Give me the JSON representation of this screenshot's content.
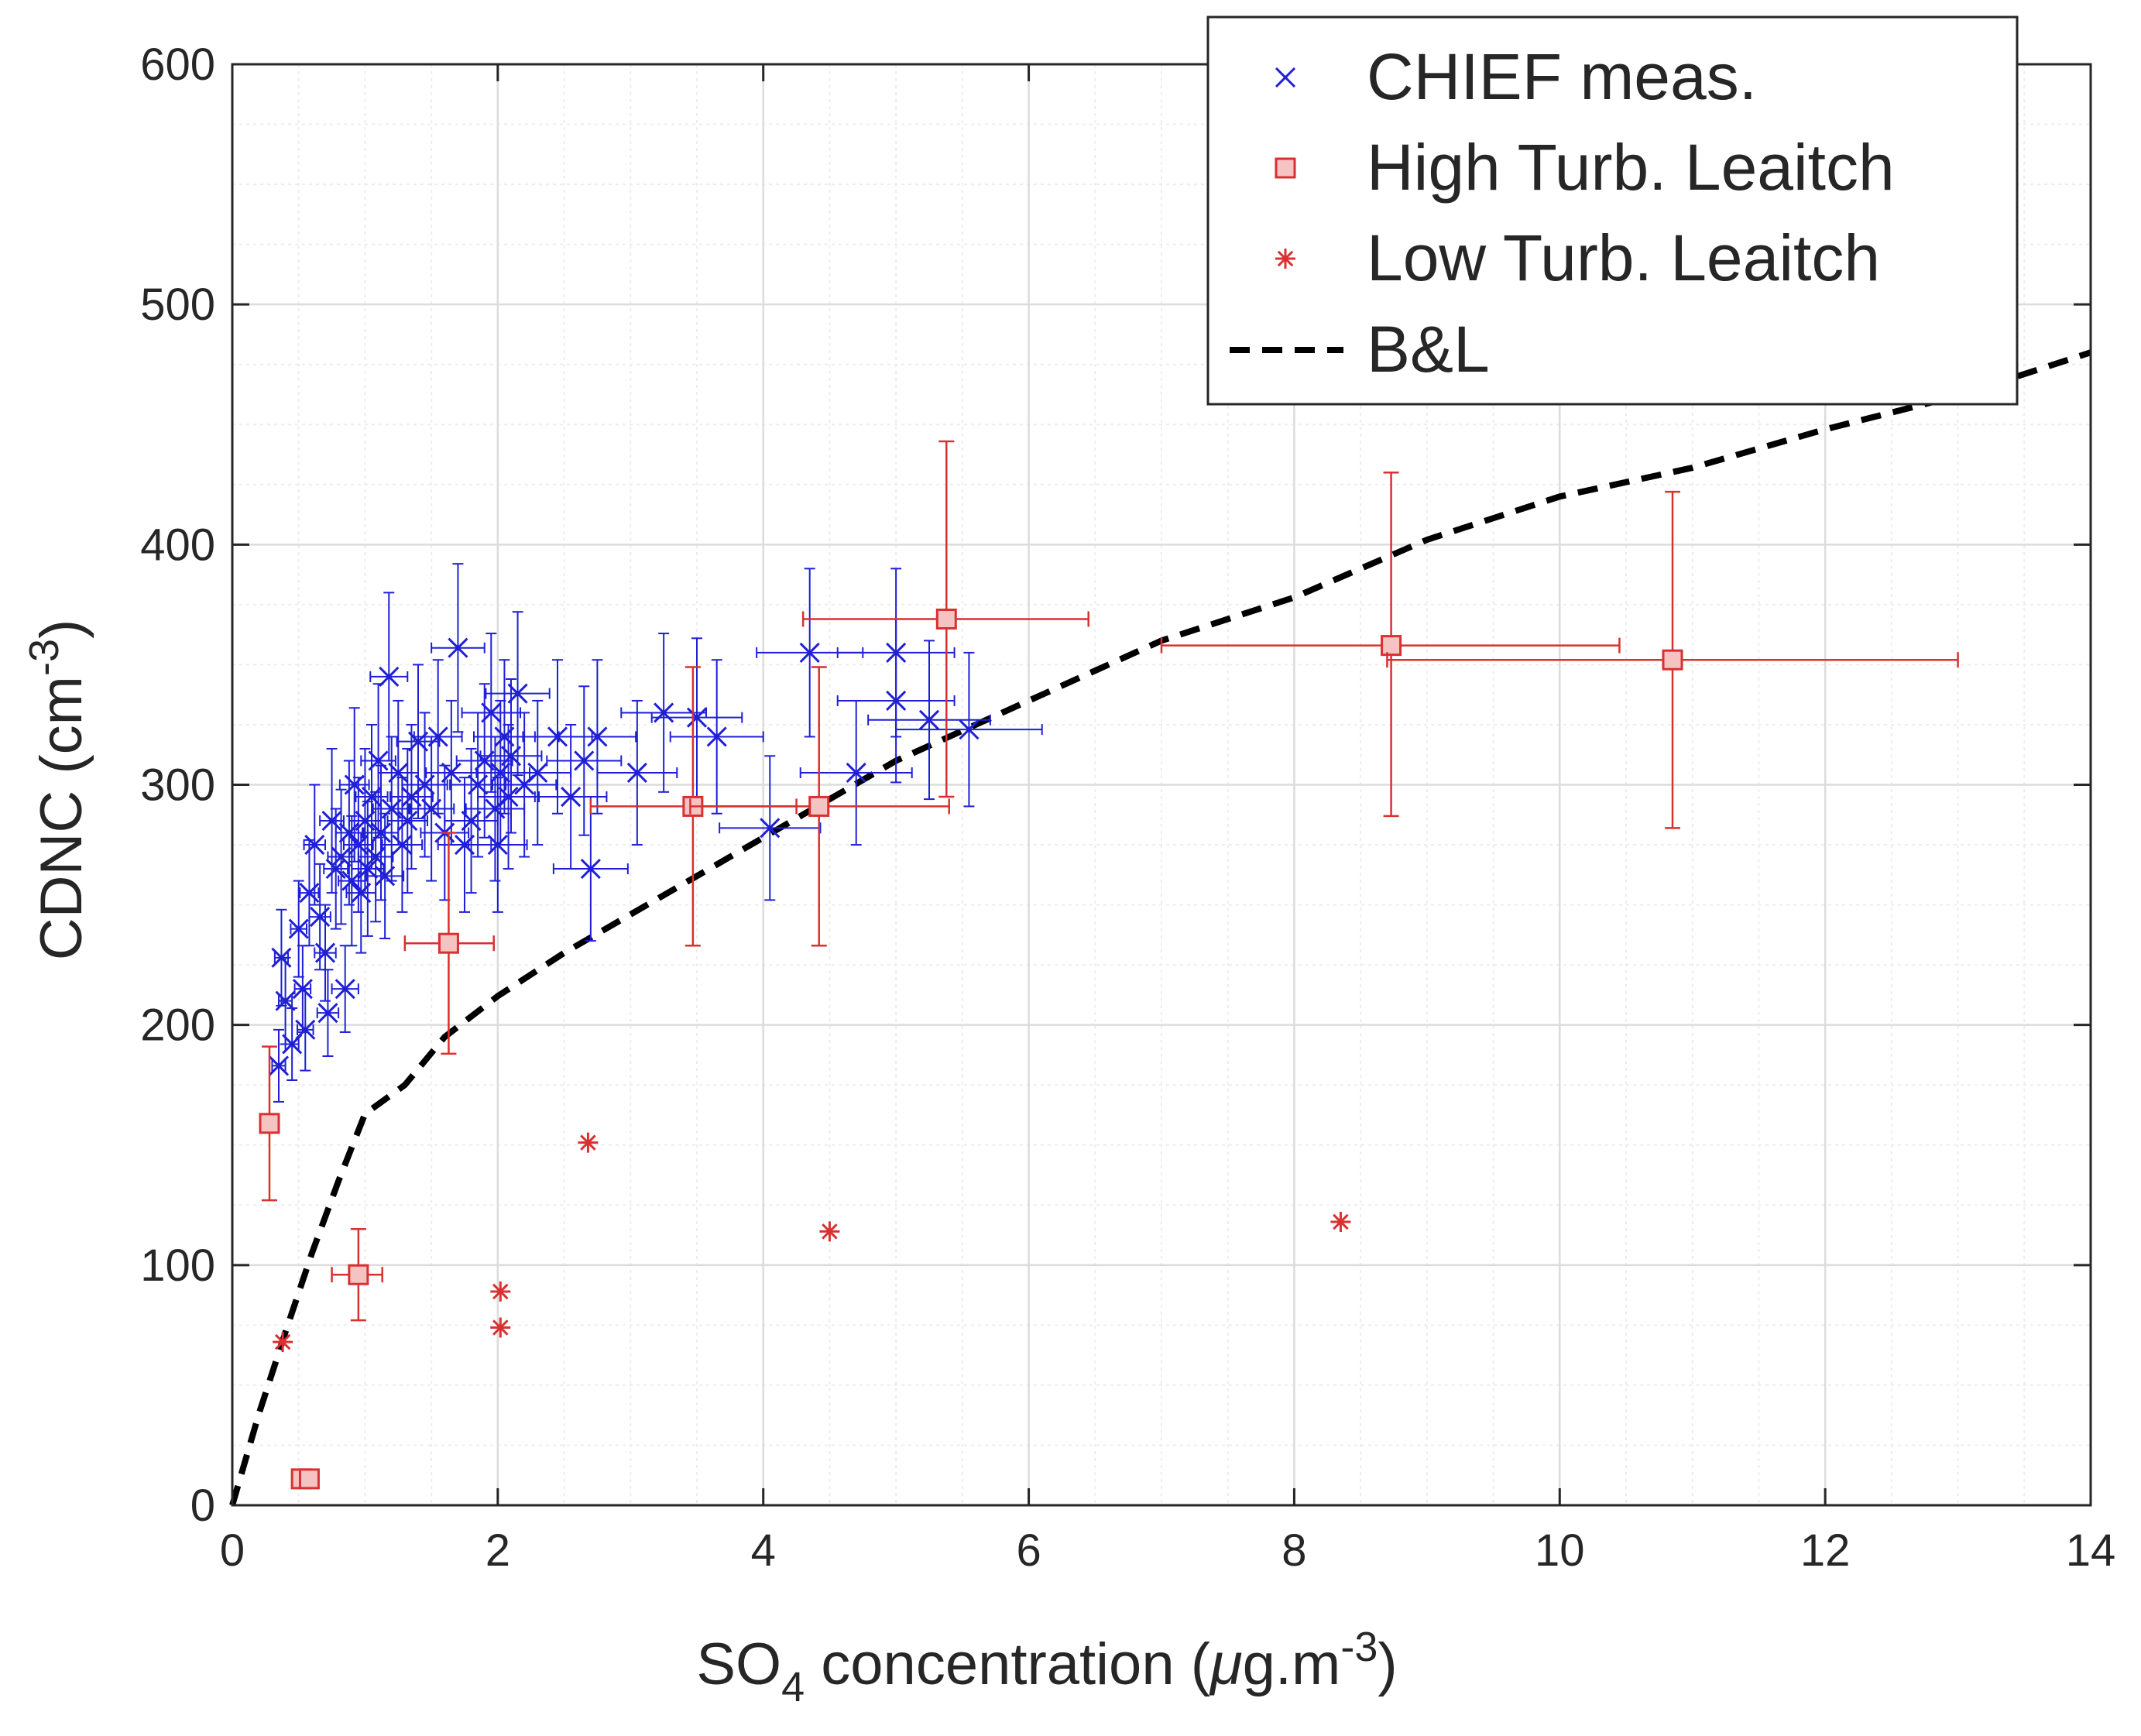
{
  "chart_data": {
    "type": "scatter",
    "xlabel": {
      "main": "SO",
      "sub": "4",
      "rest": " concentration (",
      "mu": "μ",
      "unit": "g.m",
      "sup": "-3",
      "close": ")"
    },
    "ylabel": {
      "main": "CDNC (cm",
      "sup": "-3",
      "close": ")"
    },
    "xlim": [
      0,
      14
    ],
    "ylim": [
      0,
      600
    ],
    "xticks": [
      0,
      2,
      4,
      6,
      8,
      10,
      12,
      14
    ],
    "yticks": [
      0,
      100,
      200,
      300,
      400,
      500,
      600
    ],
    "xtick_labels": [
      "0",
      "2",
      "4",
      "6",
      "8",
      "10",
      "12",
      "14"
    ],
    "ytick_labels": [
      "0",
      "100",
      "200",
      "300",
      "400",
      "500",
      "600"
    ],
    "grid": true,
    "minor_grid": true,
    "legend_position": "top-right",
    "series": [
      {
        "name": "CHIEF meas.",
        "marker": "x",
        "color": "#1f1fd6",
        "points": [
          {
            "x": 0.35,
            "y": 183,
            "xe": 0.05,
            "ye": 15
          },
          {
            "x": 0.37,
            "y": 228,
            "xe": 0.05,
            "ye": 20
          },
          {
            "x": 0.4,
            "y": 210,
            "xe": 0.05,
            "ye": 18
          },
          {
            "x": 0.45,
            "y": 192,
            "xe": 0.05,
            "ye": 15
          },
          {
            "x": 0.5,
            "y": 240,
            "xe": 0.06,
            "ye": 20
          },
          {
            "x": 0.53,
            "y": 215,
            "xe": 0.06,
            "ye": 18
          },
          {
            "x": 0.55,
            "y": 198,
            "xe": 0.06,
            "ye": 17
          },
          {
            "x": 0.58,
            "y": 255,
            "xe": 0.07,
            "ye": 22
          },
          {
            "x": 0.62,
            "y": 275,
            "xe": 0.08,
            "ye": 25
          },
          {
            "x": 0.66,
            "y": 245,
            "xe": 0.08,
            "ye": 22
          },
          {
            "x": 0.7,
            "y": 230,
            "xe": 0.08,
            "ye": 20
          },
          {
            "x": 0.72,
            "y": 205,
            "xe": 0.08,
            "ye": 18
          },
          {
            "x": 0.75,
            "y": 285,
            "xe": 0.09,
            "ye": 30
          },
          {
            "x": 0.78,
            "y": 265,
            "xe": 0.09,
            "ye": 25
          },
          {
            "x": 0.82,
            "y": 270,
            "xe": 0.1,
            "ye": 28
          },
          {
            "x": 0.85,
            "y": 215,
            "xe": 0.1,
            "ye": 18
          },
          {
            "x": 0.88,
            "y": 280,
            "xe": 0.1,
            "ye": 30
          },
          {
            "x": 0.9,
            "y": 260,
            "xe": 0.1,
            "ye": 27
          },
          {
            "x": 0.92,
            "y": 300,
            "xe": 0.11,
            "ye": 32
          },
          {
            "x": 0.95,
            "y": 275,
            "xe": 0.11,
            "ye": 28
          },
          {
            "x": 0.97,
            "y": 255,
            "xe": 0.11,
            "ye": 25
          },
          {
            "x": 1.0,
            "y": 285,
            "xe": 0.12,
            "ye": 30
          },
          {
            "x": 1.02,
            "y": 265,
            "xe": 0.12,
            "ye": 28
          },
          {
            "x": 1.05,
            "y": 295,
            "xe": 0.12,
            "ye": 30
          },
          {
            "x": 1.08,
            "y": 270,
            "xe": 0.13,
            "ye": 27
          },
          {
            "x": 1.1,
            "y": 310,
            "xe": 0.13,
            "ye": 32
          },
          {
            "x": 1.12,
            "y": 280,
            "xe": 0.13,
            "ye": 28
          },
          {
            "x": 1.15,
            "y": 262,
            "xe": 0.14,
            "ye": 26
          },
          {
            "x": 1.18,
            "y": 345,
            "xe": 0.14,
            "ye": 35
          },
          {
            "x": 1.2,
            "y": 290,
            "xe": 0.14,
            "ye": 30
          },
          {
            "x": 1.25,
            "y": 305,
            "xe": 0.15,
            "ye": 30
          },
          {
            "x": 1.28,
            "y": 275,
            "xe": 0.15,
            "ye": 28
          },
          {
            "x": 1.32,
            "y": 285,
            "xe": 0.15,
            "ye": 30
          },
          {
            "x": 1.35,
            "y": 295,
            "xe": 0.16,
            "ye": 30
          },
          {
            "x": 1.4,
            "y": 318,
            "xe": 0.16,
            "ye": 32
          },
          {
            "x": 1.45,
            "y": 300,
            "xe": 0.17,
            "ye": 30
          },
          {
            "x": 1.5,
            "y": 290,
            "xe": 0.17,
            "ye": 30
          },
          {
            "x": 1.55,
            "y": 320,
            "xe": 0.18,
            "ye": 32
          },
          {
            "x": 1.6,
            "y": 280,
            "xe": 0.18,
            "ye": 28
          },
          {
            "x": 1.65,
            "y": 305,
            "xe": 0.19,
            "ye": 30
          },
          {
            "x": 1.7,
            "y": 357,
            "xe": 0.2,
            "ye": 35
          },
          {
            "x": 1.75,
            "y": 275,
            "xe": 0.2,
            "ye": 28
          },
          {
            "x": 1.8,
            "y": 285,
            "xe": 0.2,
            "ye": 30
          },
          {
            "x": 1.85,
            "y": 300,
            "xe": 0.21,
            "ye": 30
          },
          {
            "x": 1.9,
            "y": 310,
            "xe": 0.21,
            "ye": 32
          },
          {
            "x": 1.95,
            "y": 330,
            "xe": 0.22,
            "ye": 33
          },
          {
            "x": 1.98,
            "y": 290,
            "xe": 0.22,
            "ye": 30
          },
          {
            "x": 2.0,
            "y": 275,
            "xe": 0.22,
            "ye": 28
          },
          {
            "x": 2.02,
            "y": 305,
            "xe": 0.22,
            "ye": 30
          },
          {
            "x": 2.05,
            "y": 320,
            "xe": 0.23,
            "ye": 32
          },
          {
            "x": 2.08,
            "y": 295,
            "xe": 0.23,
            "ye": 30
          },
          {
            "x": 2.1,
            "y": 312,
            "xe": 0.23,
            "ye": 32
          },
          {
            "x": 2.15,
            "y": 338,
            "xe": 0.24,
            "ye": 34
          },
          {
            "x": 2.2,
            "y": 300,
            "xe": 0.24,
            "ye": 30
          },
          {
            "x": 2.3,
            "y": 305,
            "xe": 0.25,
            "ye": 30
          },
          {
            "x": 2.45,
            "y": 320,
            "xe": 0.26,
            "ye": 32
          },
          {
            "x": 2.55,
            "y": 295,
            "xe": 0.27,
            "ye": 30
          },
          {
            "x": 2.65,
            "y": 310,
            "xe": 0.28,
            "ye": 31
          },
          {
            "x": 2.7,
            "y": 265,
            "xe": 0.28,
            "ye": 30
          },
          {
            "x": 2.75,
            "y": 320,
            "xe": 0.29,
            "ye": 32
          },
          {
            "x": 3.05,
            "y": 305,
            "xe": 0.3,
            "ye": 30
          },
          {
            "x": 3.25,
            "y": 330,
            "xe": 0.32,
            "ye": 33
          },
          {
            "x": 3.5,
            "y": 328,
            "xe": 0.34,
            "ye": 33
          },
          {
            "x": 3.65,
            "y": 320,
            "xe": 0.35,
            "ye": 32
          },
          {
            "x": 4.05,
            "y": 282,
            "xe": 0.38,
            "ye": 30
          },
          {
            "x": 4.35,
            "y": 355,
            "xe": 0.4,
            "ye": 35
          },
          {
            "x": 4.7,
            "y": 305,
            "xe": 0.42,
            "ye": 30
          },
          {
            "x": 5.0,
            "y": 355,
            "xe": 0.44,
            "ye": 35
          },
          {
            "x": 5.0,
            "y": 335,
            "xe": 0.44,
            "ye": 34
          },
          {
            "x": 5.25,
            "y": 327,
            "xe": 0.46,
            "ye": 33
          },
          {
            "x": 5.55,
            "y": 323,
            "xe": 0.55,
            "ye": 32
          }
        ]
      },
      {
        "name": "High Turb. Leaitch",
        "marker": "square",
        "color": "#d93030",
        "fill": "#f6c3c3",
        "points": [
          {
            "x": 0.28,
            "y": 159,
            "xlo": 0.25,
            "xhi": 0.31,
            "ylo": 127,
            "yhi": 191
          },
          {
            "x": 0.52,
            "y": 11,
            "xlo": 0.48,
            "xhi": 0.57,
            "ylo": 11,
            "yhi": 11
          },
          {
            "x": 0.58,
            "y": 11,
            "xlo": 0.54,
            "xhi": 0.62,
            "ylo": 11,
            "yhi": 11
          },
          {
            "x": 0.95,
            "y": 96,
            "xlo": 0.75,
            "xhi": 1.13,
            "ylo": 77,
            "yhi": 115
          },
          {
            "x": 1.63,
            "y": 234,
            "xlo": 1.3,
            "xhi": 1.97,
            "ylo": 188,
            "yhi": 280
          },
          {
            "x": 3.47,
            "y": 291,
            "xlo": 2.7,
            "xhi": 4.25,
            "ylo": 233,
            "yhi": 349
          },
          {
            "x": 4.42,
            "y": 291,
            "xlo": 3.45,
            "xhi": 5.4,
            "ylo": 233,
            "yhi": 349
          },
          {
            "x": 5.38,
            "y": 369,
            "xlo": 4.3,
            "xhi": 6.45,
            "ylo": 295,
            "yhi": 443
          },
          {
            "x": 8.73,
            "y": 358,
            "xlo": 7.0,
            "xhi": 10.45,
            "ylo": 287,
            "yhi": 430
          },
          {
            "x": 10.85,
            "y": 352,
            "xlo": 8.7,
            "xhi": 13.0,
            "ylo": 282,
            "yhi": 422
          }
        ]
      },
      {
        "name": "Low Turb. Leaitch",
        "marker": "asterisk",
        "color": "#d93030",
        "points": [
          {
            "x": 0.38,
            "y": 68
          },
          {
            "x": 2.02,
            "y": 89
          },
          {
            "x": 2.02,
            "y": 74
          },
          {
            "x": 2.68,
            "y": 151
          },
          {
            "x": 4.5,
            "y": 114
          },
          {
            "x": 8.35,
            "y": 118
          }
        ]
      },
      {
        "name": "B&L",
        "marker": "none",
        "line": "dashed",
        "color": "#000000",
        "x": [
          0,
          0.2,
          0.4,
          0.6,
          0.8,
          1.0,
          1.3,
          1.6,
          2.0,
          2.5,
          3.0,
          3.5,
          4.0,
          5.0,
          6.0,
          7.0,
          8.0,
          9.0,
          10.0,
          11.0,
          12.0,
          13.0,
          14.0
        ],
        "y": [
          0,
          38,
          72,
          105,
          135,
          163,
          175,
          195,
          212,
          230,
          246,
          262,
          278,
          310,
          335,
          360,
          378,
          402,
          420,
          432,
          448,
          462,
          480
        ]
      }
    ]
  }
}
